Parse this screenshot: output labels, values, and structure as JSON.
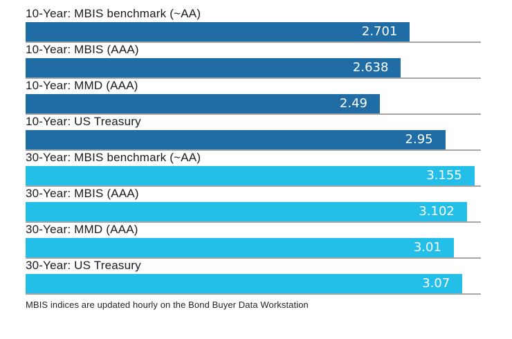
{
  "chart_data": {
    "type": "bar",
    "orientation": "horizontal",
    "title": "",
    "xlabel": "",
    "ylabel": "",
    "xlim": [
      0,
      3.2
    ],
    "grid": "gray baseline under each bar, full plot width",
    "legend": "none",
    "bars": [
      {
        "label": "10-Year: MBIS benchmark (~AA)",
        "value": 2.701,
        "display": "2.701",
        "group": "10-year"
      },
      {
        "label": "10-Year: MBIS (AAA)",
        "value": 2.638,
        "display": "2.638",
        "group": "10-year"
      },
      {
        "label": "10-Year: MMD (AAA)",
        "value": 2.49,
        "display": "2.49",
        "group": "10-year"
      },
      {
        "label": "10-Year: US Treasury",
        "value": 2.95,
        "display": "2.95",
        "group": "10-year"
      },
      {
        "label": "30-Year: MBIS benchmark (~AA)",
        "value": 3.155,
        "display": "3.155",
        "group": "30-year"
      },
      {
        "label": "30-Year: MBIS (AAA)",
        "value": 3.102,
        "display": "3.102",
        "group": "30-year"
      },
      {
        "label": "30-Year: MMD (AAA)",
        "value": 3.01,
        "display": "3.01",
        "group": "30-year"
      },
      {
        "label": "30-Year: US Treasury",
        "value": 3.07,
        "display": "3.07",
        "group": "30-year"
      }
    ],
    "colors": {
      "10-year": "#1F6DA4",
      "30-year": "#23BFE9",
      "baseline": "#A6A6A6",
      "label_text": "#1A1A1A",
      "value_text": "#FFFFFF"
    },
    "footnote": "MBIS indices are updated hourly on the Bond Buyer Data Workstation"
  }
}
